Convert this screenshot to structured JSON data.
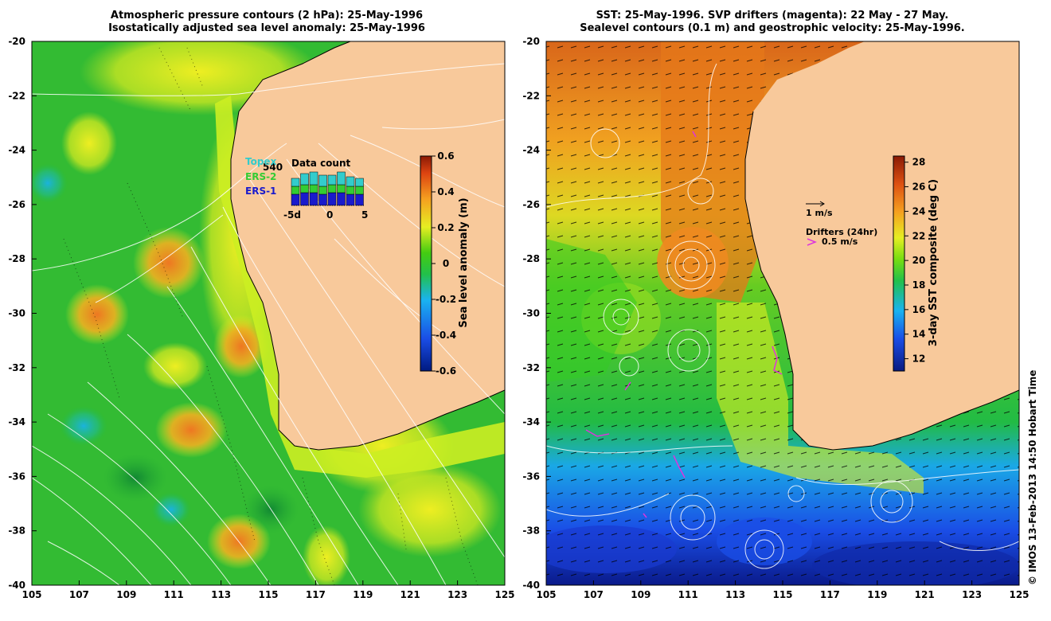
{
  "left_panel": {
    "title_line1": "Atmospheric pressure contours (2 hPa): 25-May-1996",
    "title_line2": "Isostatically adjusted sea level anomaly: 25-May-1996",
    "colorbar": {
      "label": "Sea level anomaly (m)",
      "ticks": [
        "0.6",
        "0.4",
        "0.2",
        "0",
        "-0.2",
        "-0.4",
        "-0.6"
      ],
      "range": [
        -0.6,
        0.6
      ]
    },
    "inset": {
      "title": "Data count",
      "count": "540",
      "legend": [
        {
          "label": "Topex",
          "color": "#33cccc"
        },
        {
          "label": "ERS-2",
          "color": "#33cc33"
        },
        {
          "label": "ERS-1",
          "color": "#1a1acc"
        }
      ],
      "axis_labels": [
        "-5d",
        "0",
        "5"
      ]
    }
  },
  "right_panel": {
    "title_line1": "SST: 25-May-1996. SVP drifters (magenta): 22 May - 27 May.",
    "title_line2": "Sealevel contours (0.1 m) and geostrophic velocity: 25-May-1996.",
    "colorbar": {
      "label": "3-day SST composite (deg C)",
      "ticks": [
        "28",
        "26",
        "24",
        "22",
        "20",
        "18",
        "16",
        "14",
        "12"
      ],
      "range": [
        11,
        28.5
      ]
    },
    "velocity_legend": "1 m/s",
    "drifter_legend_title": "Drifters (24hr)",
    "drifter_legend_value": "0.5 m/s"
  },
  "axes": {
    "lat_ticks": [
      "-20",
      "-22",
      "-24",
      "-26",
      "-28",
      "-30",
      "-32",
      "-34",
      "-36",
      "-38",
      "-40"
    ],
    "lon_ticks": [
      "105",
      "107",
      "109",
      "111",
      "113",
      "115",
      "117",
      "119",
      "121",
      "123",
      "125"
    ]
  },
  "credit": "© IMOS 13-Feb-2013 14:50 Hobart Time",
  "colors": {
    "land": "#f8c99b",
    "ocean_low": "#22bb22",
    "ocean_mid": "#ccee33",
    "drifter": "#dd33dd"
  }
}
